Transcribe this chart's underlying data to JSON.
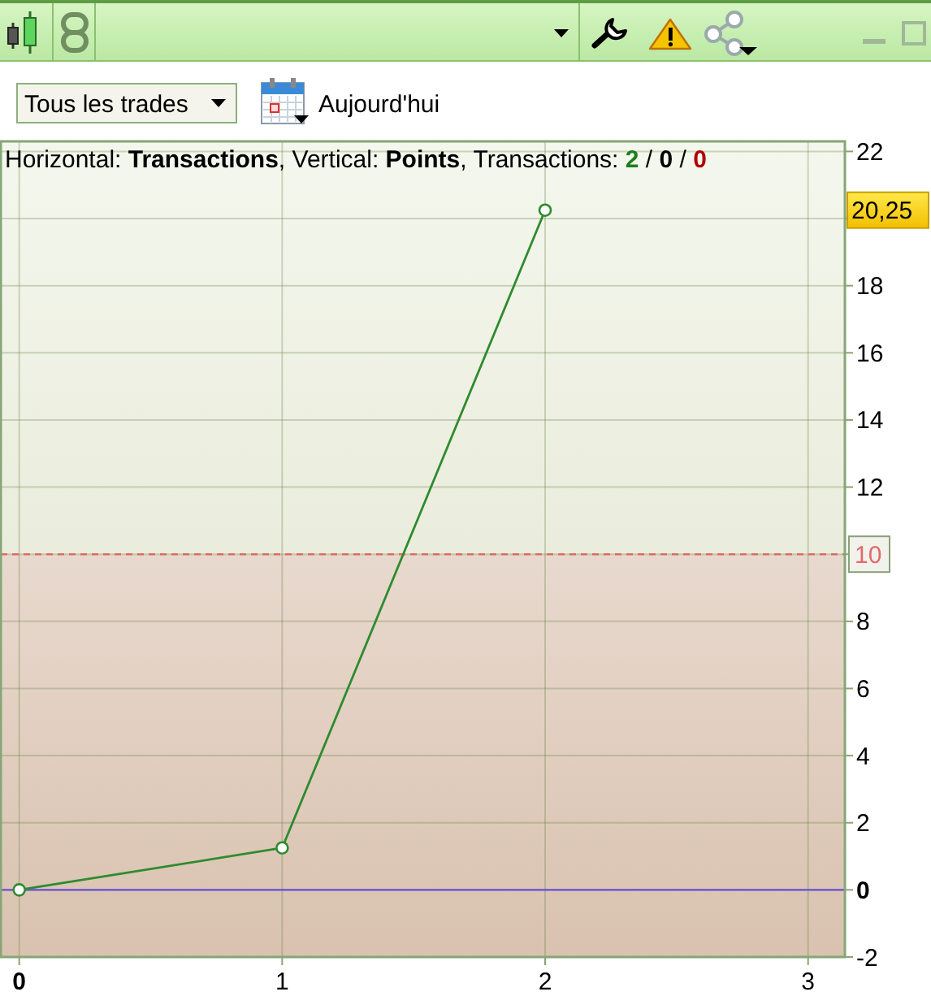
{
  "chart_data": {
    "type": "line",
    "subtitle": "Horizontal: Transactions, Vertical: Points, Transactions: 2 / 0 / 0",
    "x": [
      0,
      1,
      2
    ],
    "series": [
      {
        "color": "#2e8b2e",
        "values": [
          0,
          1.25,
          20.25
        ]
      }
    ],
    "xlim": [
      -0.07,
      3.14
    ],
    "xticks": [
      0,
      1,
      2,
      3
    ],
    "ylim": [
      -2,
      22.3
    ],
    "yticks": [
      -2,
      0,
      2,
      4,
      6,
      8,
      {
        "value": 10,
        "label": null
      },
      12,
      14,
      16,
      18,
      {
        "value": 20,
        "label": null
      },
      22
    ],
    "grid": true,
    "marker": "circle",
    "line_style": "solid",
    "ref_lines": [
      {
        "axis": "y",
        "value": 10,
        "label": "10",
        "color": "#e06a6a",
        "line_style": "dashed"
      },
      {
        "axis": "y",
        "value": 0,
        "color": "#6a4fd8"
      }
    ],
    "bands": [
      {
        "axis": "y",
        "from": 10,
        "to": 22.3,
        "color": "#eef3e4"
      },
      {
        "axis": "y",
        "from": -2,
        "to": 10,
        "color": "#dcc5b3"
      }
    ],
    "annotations": [
      "Tous les trades",
      "Aujourd'hui",
      "20,25"
    ]
  }
}
